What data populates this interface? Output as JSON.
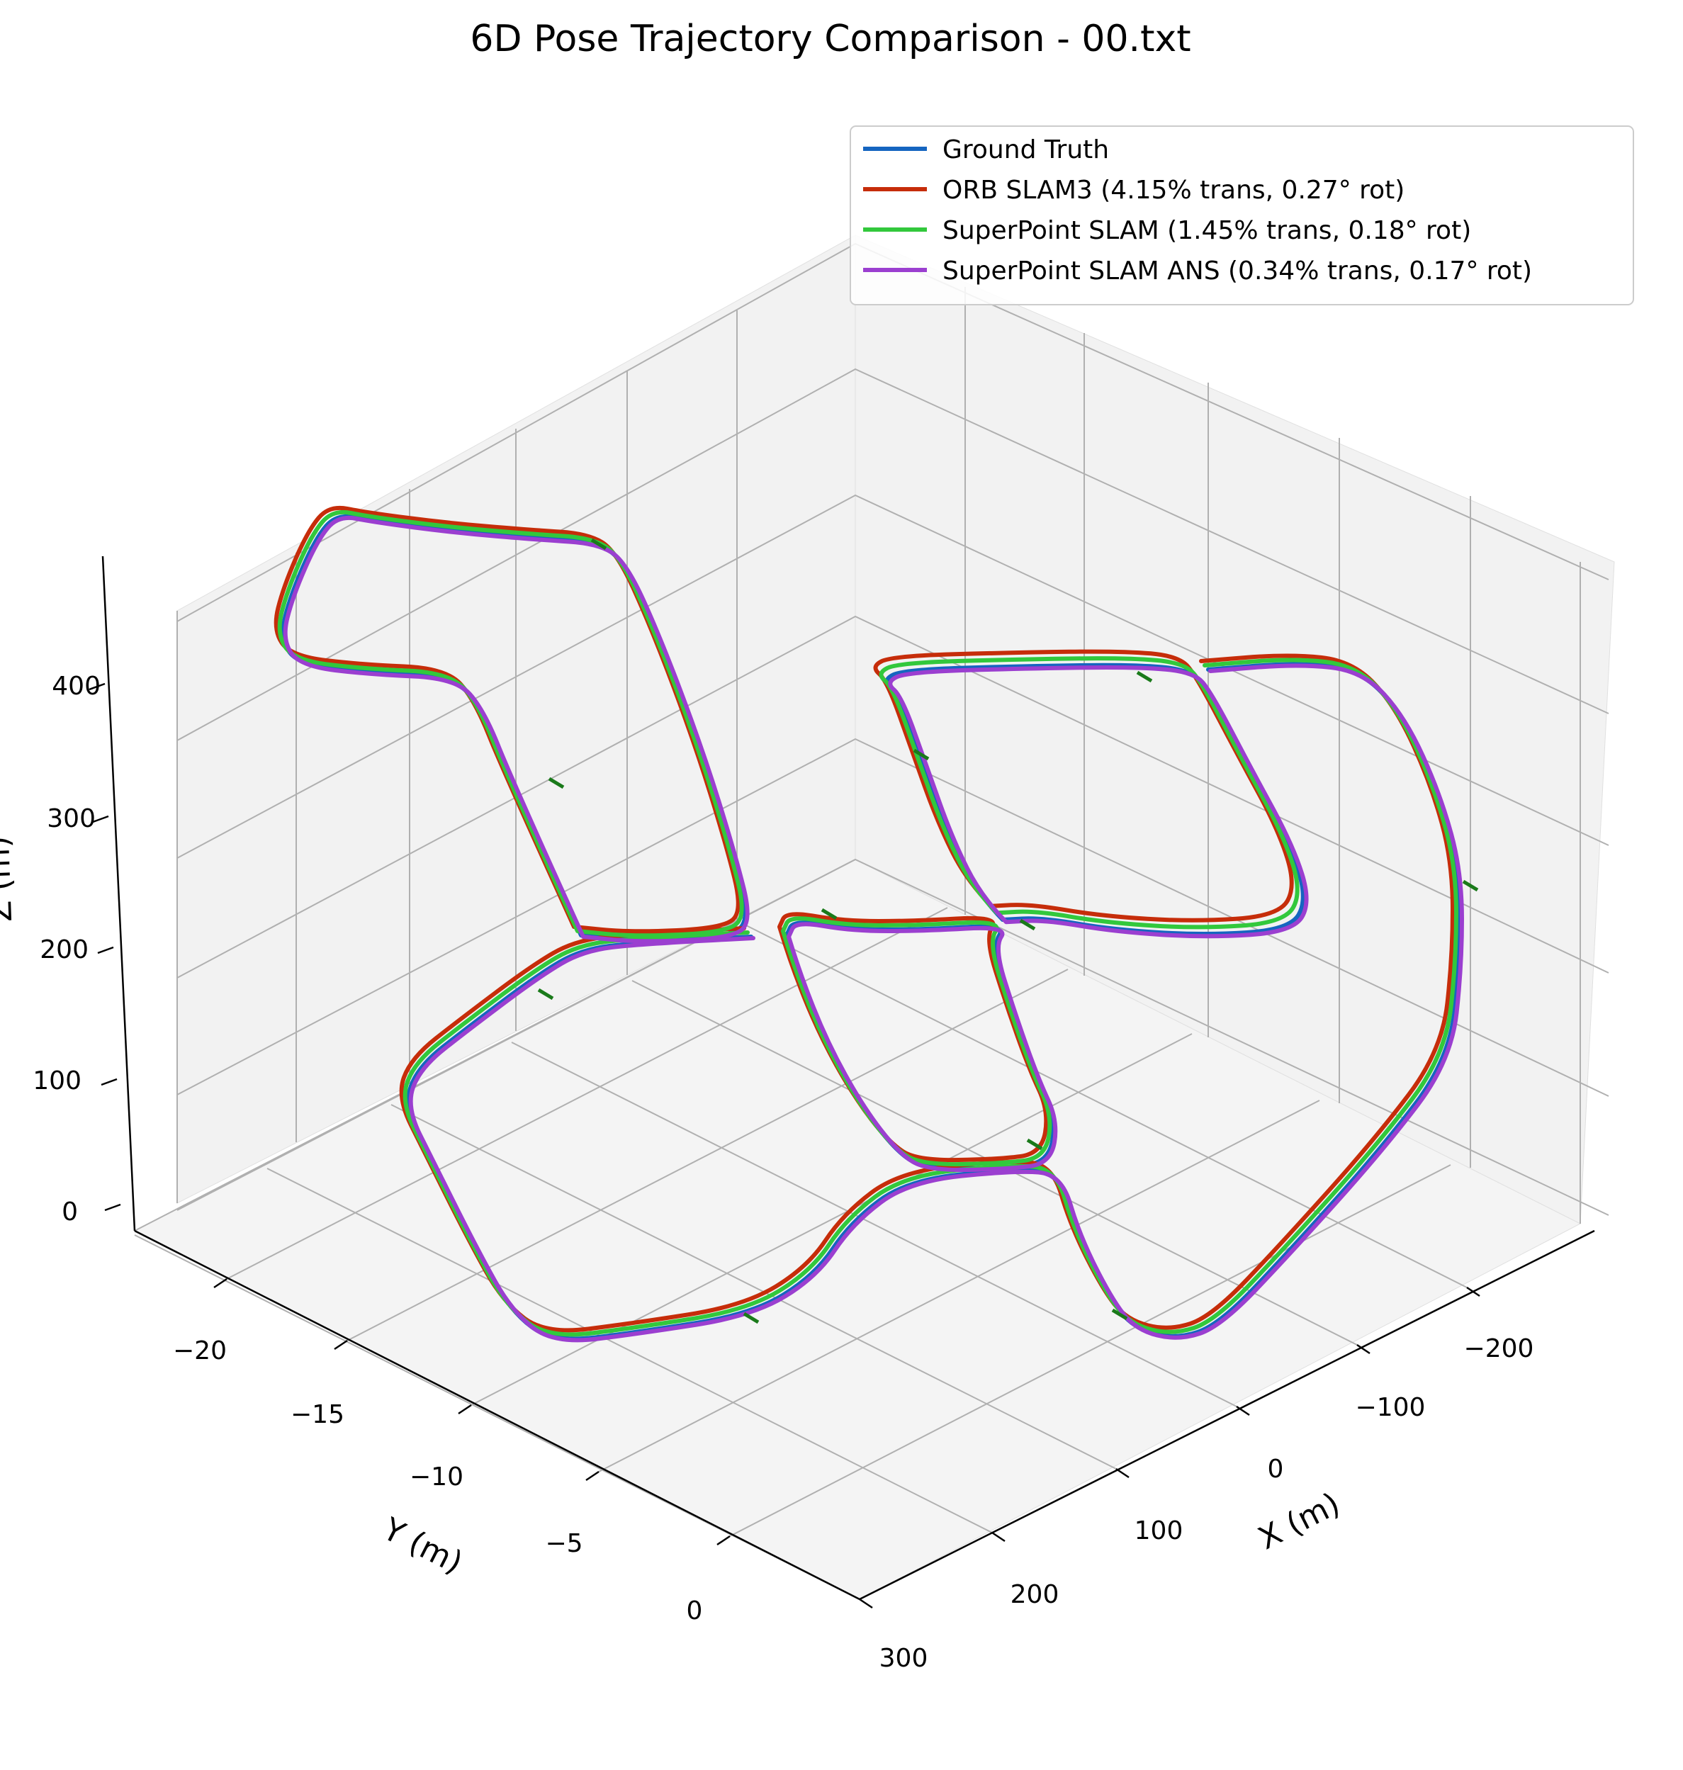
{
  "chart_data": {
    "type": "line",
    "title": "6D Pose Trajectory Comparison - 00.txt",
    "xlabel": "X (m)",
    "ylabel": "Y (m)",
    "zlabel": "Z (m)",
    "xlim": [
      -270,
      300
    ],
    "ylim": [
      -24,
      1
    ],
    "zlim": [
      -10,
      470
    ],
    "x_ticks": [
      "−200",
      "−100",
      "0",
      "100",
      "200",
      "300"
    ],
    "y_ticks": [
      "−20",
      "−15",
      "−10",
      "−5",
      "0"
    ],
    "z_ticks": [
      "0",
      "100",
      "200",
      "300",
      "400"
    ],
    "grid": true,
    "legend_position": "top-right",
    "series": [
      {
        "name": "Ground Truth",
        "color": "#1565c0"
      },
      {
        "name": "ORB SLAM3 (4.15% trans, 0.27° rot)",
        "color": "#c62d0a"
      },
      {
        "name": "SuperPoint SLAM (1.45% trans, 0.18° rot)",
        "color": "#32c83c"
      },
      {
        "name": "SuperPoint SLAM ANS (0.34% trans, 0.17° rot)",
        "color": "#9b3fd0"
      }
    ],
    "orientation_marker_color": "#1a7a1a"
  }
}
